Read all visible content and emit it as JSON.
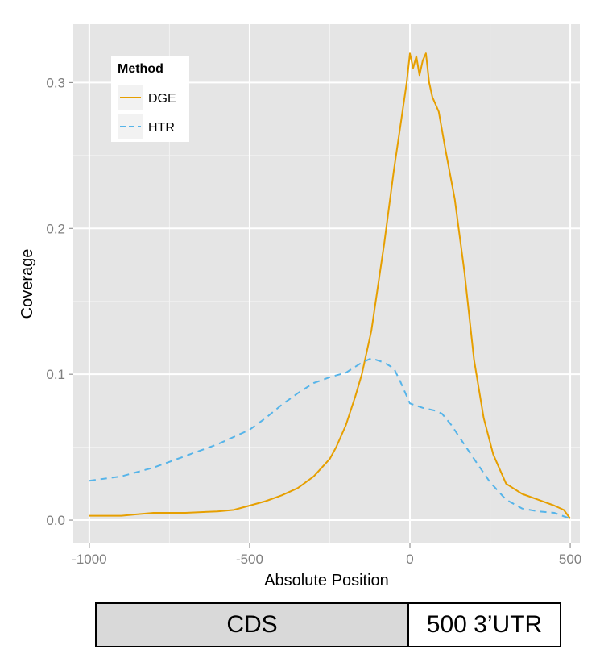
{
  "chart_data": {
    "type": "line",
    "title": "",
    "xlabel": "Absolute Position",
    "ylabel": "Coverage",
    "xlim": [
      -1050,
      530
    ],
    "ylim": [
      -0.016,
      0.34
    ],
    "x_ticks": [
      -1000,
      -500,
      0,
      500
    ],
    "x_tick_labels": [
      "-1000",
      "-500",
      "0",
      "500"
    ],
    "y_ticks": [
      0.0,
      0.1,
      0.2,
      0.3
    ],
    "y_tick_labels": [
      "0.0",
      "0.1",
      "0.2",
      "0.3"
    ],
    "grid": true,
    "legend": {
      "title": "Method",
      "placement": "top-left"
    },
    "series": [
      {
        "name": "DGE",
        "color": "#E69F00",
        "dash": "solid",
        "x": [
          -1000,
          -900,
          -850,
          -800,
          -700,
          -600,
          -550,
          -500,
          -450,
          -400,
          -350,
          -300,
          -250,
          -230,
          -200,
          -170,
          -150,
          -120,
          -100,
          -80,
          -50,
          -30,
          -10,
          0,
          10,
          20,
          30,
          40,
          50,
          60,
          70,
          90,
          110,
          140,
          170,
          200,
          230,
          260,
          300,
          350,
          400,
          450,
          480,
          500
        ],
        "y": [
          0.003,
          0.003,
          0.004,
          0.005,
          0.005,
          0.006,
          0.007,
          0.01,
          0.013,
          0.017,
          0.022,
          0.03,
          0.042,
          0.05,
          0.065,
          0.085,
          0.1,
          0.13,
          0.16,
          0.19,
          0.24,
          0.27,
          0.3,
          0.32,
          0.31,
          0.318,
          0.305,
          0.315,
          0.32,
          0.3,
          0.29,
          0.28,
          0.255,
          0.22,
          0.17,
          0.11,
          0.07,
          0.045,
          0.025,
          0.018,
          0.014,
          0.01,
          0.007,
          0.001
        ]
      },
      {
        "name": "HTR",
        "color": "#56B4E9",
        "dash": "dashed",
        "x": [
          -1000,
          -900,
          -800,
          -700,
          -600,
          -500,
          -450,
          -400,
          -350,
          -300,
          -250,
          -200,
          -150,
          -120,
          -80,
          -50,
          -30,
          0,
          40,
          80,
          100,
          130,
          160,
          200,
          250,
          300,
          350,
          400,
          450,
          500
        ],
        "y": [
          0.027,
          0.03,
          0.036,
          0.044,
          0.052,
          0.062,
          0.07,
          0.079,
          0.087,
          0.094,
          0.098,
          0.101,
          0.108,
          0.111,
          0.108,
          0.104,
          0.095,
          0.08,
          0.077,
          0.075,
          0.073,
          0.065,
          0.055,
          0.042,
          0.026,
          0.014,
          0.008,
          0.006,
          0.005,
          0.001
        ]
      }
    ]
  },
  "region_bar": {
    "cds_label": "CDS",
    "utr_label": "500 3’UTR"
  }
}
